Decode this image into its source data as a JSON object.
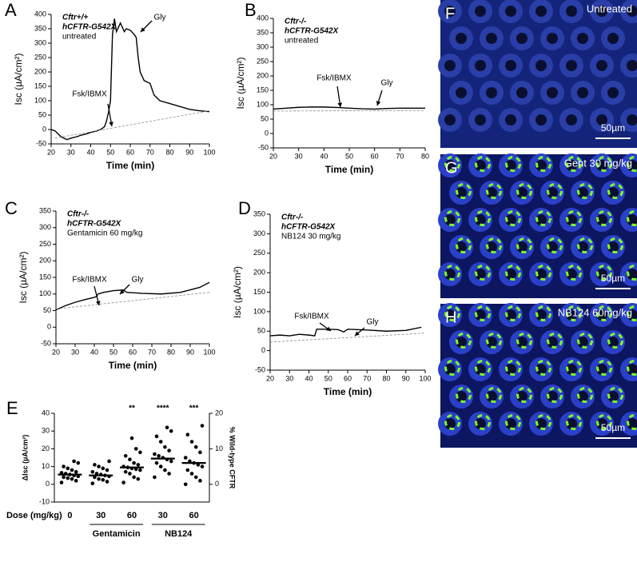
{
  "chart_data": [
    {
      "type": "line",
      "panel": "A",
      "title_lines": [
        "Cftr+/+",
        "hCFTR-G542X",
        "untreated"
      ],
      "xlabel": "Time (min)",
      "ylabel": "Isc (µA/cm²)",
      "xlim": [
        20,
        100
      ],
      "xticks": [
        20,
        30,
        40,
        50,
        60,
        70,
        80,
        90,
        100
      ],
      "ylim": [
        -50,
        400
      ],
      "yticks": [
        -50,
        0,
        50,
        100,
        150,
        200,
        250,
        300,
        350,
        400
      ],
      "annotations": [
        "Fsk/IBMX",
        "Gly"
      ],
      "series": [
        {
          "color": "#000000",
          "x": [
            20,
            22,
            25,
            28,
            30,
            33,
            35,
            38,
            40,
            43,
            45,
            47,
            48,
            49,
            50,
            51,
            52,
            53,
            55,
            57,
            58,
            60,
            62,
            63,
            64,
            65,
            67,
            70,
            72,
            75,
            80,
            85,
            90,
            95,
            100
          ],
          "values": [
            0,
            -5,
            -25,
            -35,
            -30,
            -25,
            -20,
            -15,
            -10,
            -5,
            0,
            10,
            30,
            60,
            100,
            330,
            385,
            340,
            370,
            340,
            350,
            345,
            330,
            320,
            250,
            200,
            170,
            160,
            120,
            100,
            90,
            80,
            70,
            65,
            62
          ]
        },
        {
          "color": "#888888",
          "dashed": true,
          "x": [
            22,
            100
          ],
          "values": [
            -30,
            65
          ]
        }
      ]
    },
    {
      "type": "line",
      "panel": "B",
      "title_lines": [
        "Cftr-/-",
        "hCFTR-G542X",
        "untreated"
      ],
      "xlabel": "Time (min)",
      "ylabel": "Isc (µA/cm²)",
      "xlim": [
        20,
        80
      ],
      "xticks": [
        20,
        30,
        40,
        50,
        60,
        70,
        80
      ],
      "ylim": [
        -50,
        400
      ],
      "yticks": [
        -50,
        0,
        50,
        100,
        150,
        200,
        250,
        300,
        350,
        400
      ],
      "annotations": [
        "Fsk/IBMX",
        "Gly"
      ],
      "series": [
        {
          "color": "#000000",
          "x": [
            20,
            25,
            30,
            35,
            40,
            46,
            50,
            55,
            60,
            65,
            70,
            75,
            80
          ],
          "values": [
            85,
            88,
            91,
            92,
            92,
            90,
            88,
            86,
            85,
            87,
            88,
            88,
            88
          ]
        },
        {
          "color": "#888888",
          "dashed": true,
          "x": [
            20,
            80
          ],
          "values": [
            78,
            80
          ]
        }
      ]
    },
    {
      "type": "line",
      "panel": "C",
      "title_lines": [
        "Cftr-/-",
        "hCFTR-G542X",
        "Gentamicin 60 mg/kg"
      ],
      "xlabel": "Time (min)",
      "ylabel": "Isc (µA/cm²)",
      "xlim": [
        20,
        100
      ],
      "xticks": [
        20,
        30,
        40,
        50,
        60,
        70,
        80,
        90,
        100
      ],
      "ylim": [
        -50,
        350
      ],
      "yticks": [
        -50,
        0,
        50,
        100,
        150,
        200,
        250,
        300,
        350
      ],
      "annotations": [
        "Fsk/IBMX",
        "Gly"
      ],
      "series": [
        {
          "color": "#000000",
          "x": [
            20,
            25,
            30,
            35,
            40,
            41,
            42,
            45,
            50,
            55,
            57,
            65,
            75,
            85,
            95,
            100
          ],
          "values": [
            52,
            65,
            75,
            83,
            90,
            92,
            100,
            105,
            110,
            112,
            105,
            102,
            100,
            105,
            120,
            135
          ]
        },
        {
          "color": "#888888",
          "dashed": true,
          "x": [
            20,
            100
          ],
          "values": [
            55,
            105
          ]
        }
      ]
    },
    {
      "type": "line",
      "panel": "D",
      "title_lines": [
        "Cftr-/-",
        "hCFTR-G542X",
        "NB124 30 mg/kg"
      ],
      "xlabel": "Time (min)",
      "ylabel": "Isc (µA/cm²)",
      "xlim": [
        20,
        100
      ],
      "xticks": [
        20,
        30,
        40,
        50,
        60,
        70,
        80,
        90,
        100
      ],
      "ylim": [
        -50,
        350
      ],
      "yticks": [
        -50,
        0,
        50,
        100,
        150,
        200,
        250,
        300,
        350
      ],
      "annotations": [
        "Fsk/IBMX",
        "Gly"
      ],
      "series": [
        {
          "color": "#000000",
          "x": [
            20,
            25,
            30,
            35,
            40,
            43,
            44,
            50,
            55,
            58,
            60,
            70,
            80,
            90,
            98
          ],
          "values": [
            38,
            40,
            38,
            42,
            40,
            38,
            55,
            55,
            54,
            48,
            55,
            53,
            50,
            52,
            60
          ]
        },
        {
          "color": "#888888",
          "dashed": true,
          "x": [
            20,
            100
          ],
          "values": [
            22,
            45
          ]
        }
      ]
    },
    {
      "type": "dotplot",
      "panel": "E",
      "ylabel": "ΔIsc (µA/cm²)",
      "y2label": "% Wild-type CFTR",
      "xlabel": "Dose (mg/kg)",
      "categories": [
        "0",
        "30",
        "60",
        "30",
        "60"
      ],
      "group_labels": [
        "Gentamicin",
        "NB124"
      ],
      "significance": [
        null,
        null,
        "**",
        "****",
        "***"
      ],
      "ylim": [
        -10,
        40
      ],
      "yticks": [
        -10,
        0,
        10,
        20,
        30,
        40
      ],
      "y2lim": [
        -5,
        20
      ],
      "y2ticks": [
        0,
        10,
        20
      ],
      "color": "#000000",
      "means": [
        5.5,
        5,
        9.5,
        14.5,
        12
      ],
      "points": [
        [
          1,
          2,
          3,
          3.5,
          4,
          4.5,
          5,
          5.5,
          6,
          6.5,
          7,
          8,
          9,
          10,
          12,
          13
        ],
        [
          0.5,
          1.5,
          2.5,
          3,
          4,
          4.5,
          5,
          5.5,
          6,
          7,
          8,
          9,
          10,
          11,
          13
        ],
        [
          1,
          3,
          4,
          6,
          7,
          8,
          8.5,
          9,
          9.5,
          10,
          11,
          12,
          14,
          16,
          18,
          20,
          26
        ],
        [
          4,
          6,
          8,
          10,
          12,
          13,
          14,
          15,
          16,
          17,
          19,
          21,
          24,
          27,
          30,
          32
        ],
        [
          0,
          2,
          4,
          6,
          8,
          10,
          11,
          12,
          13,
          15,
          18,
          21,
          24,
          28,
          33
        ]
      ]
    }
  ],
  "images": [
    {
      "panel": "F",
      "label": "Untreated",
      "scale": "50µm"
    },
    {
      "panel": "G",
      "label": "Gent 30 mg/kg",
      "scale": "50µm"
    },
    {
      "panel": "H",
      "label": "NB124 60mg/kg",
      "scale": "50µm"
    }
  ]
}
